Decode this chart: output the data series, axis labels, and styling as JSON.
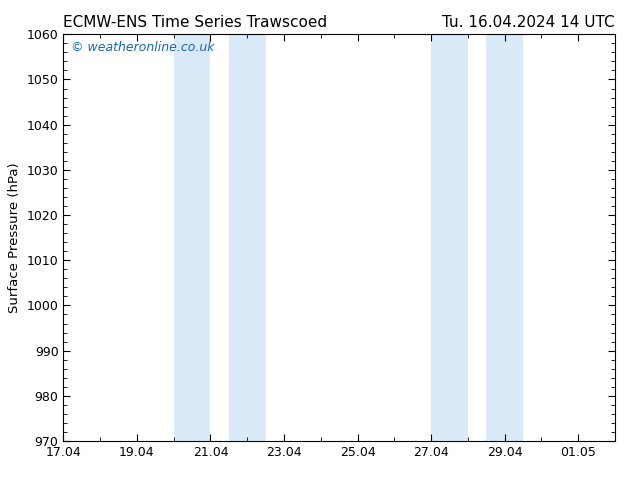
{
  "title_left": "ECMW-ENS Time Series Trawscoed",
  "title_right": "Tu. 16.04.2024 14 UTC",
  "ylabel": "Surface Pressure (hPa)",
  "ylim": [
    970,
    1060
  ],
  "yticks": [
    970,
    980,
    990,
    1000,
    1010,
    1020,
    1030,
    1040,
    1050,
    1060
  ],
  "xtick_positions": [
    17,
    19,
    21,
    23,
    25,
    27,
    29,
    31
  ],
  "xtick_labels": [
    "17.04",
    "19.04",
    "21.04",
    "23.04",
    "25.04",
    "27.04",
    "29.04",
    "01.05"
  ],
  "xlim": [
    17,
    32
  ],
  "shaded_bands": [
    {
      "x_start": 20.0,
      "x_end": 21.0
    },
    {
      "x_start": 21.5,
      "x_end": 22.5
    },
    {
      "x_start": 27.0,
      "x_end": 28.0
    },
    {
      "x_start": 28.5,
      "x_end": 29.5
    }
  ],
  "shade_color": "#daeaf8",
  "background_color": "#ffffff",
  "watermark_text": "© weatheronline.co.uk",
  "watermark_color": "#1565c0",
  "title_fontsize": 11,
  "label_fontsize": 9.5,
  "tick_fontsize": 9,
  "watermark_fontsize": 9
}
